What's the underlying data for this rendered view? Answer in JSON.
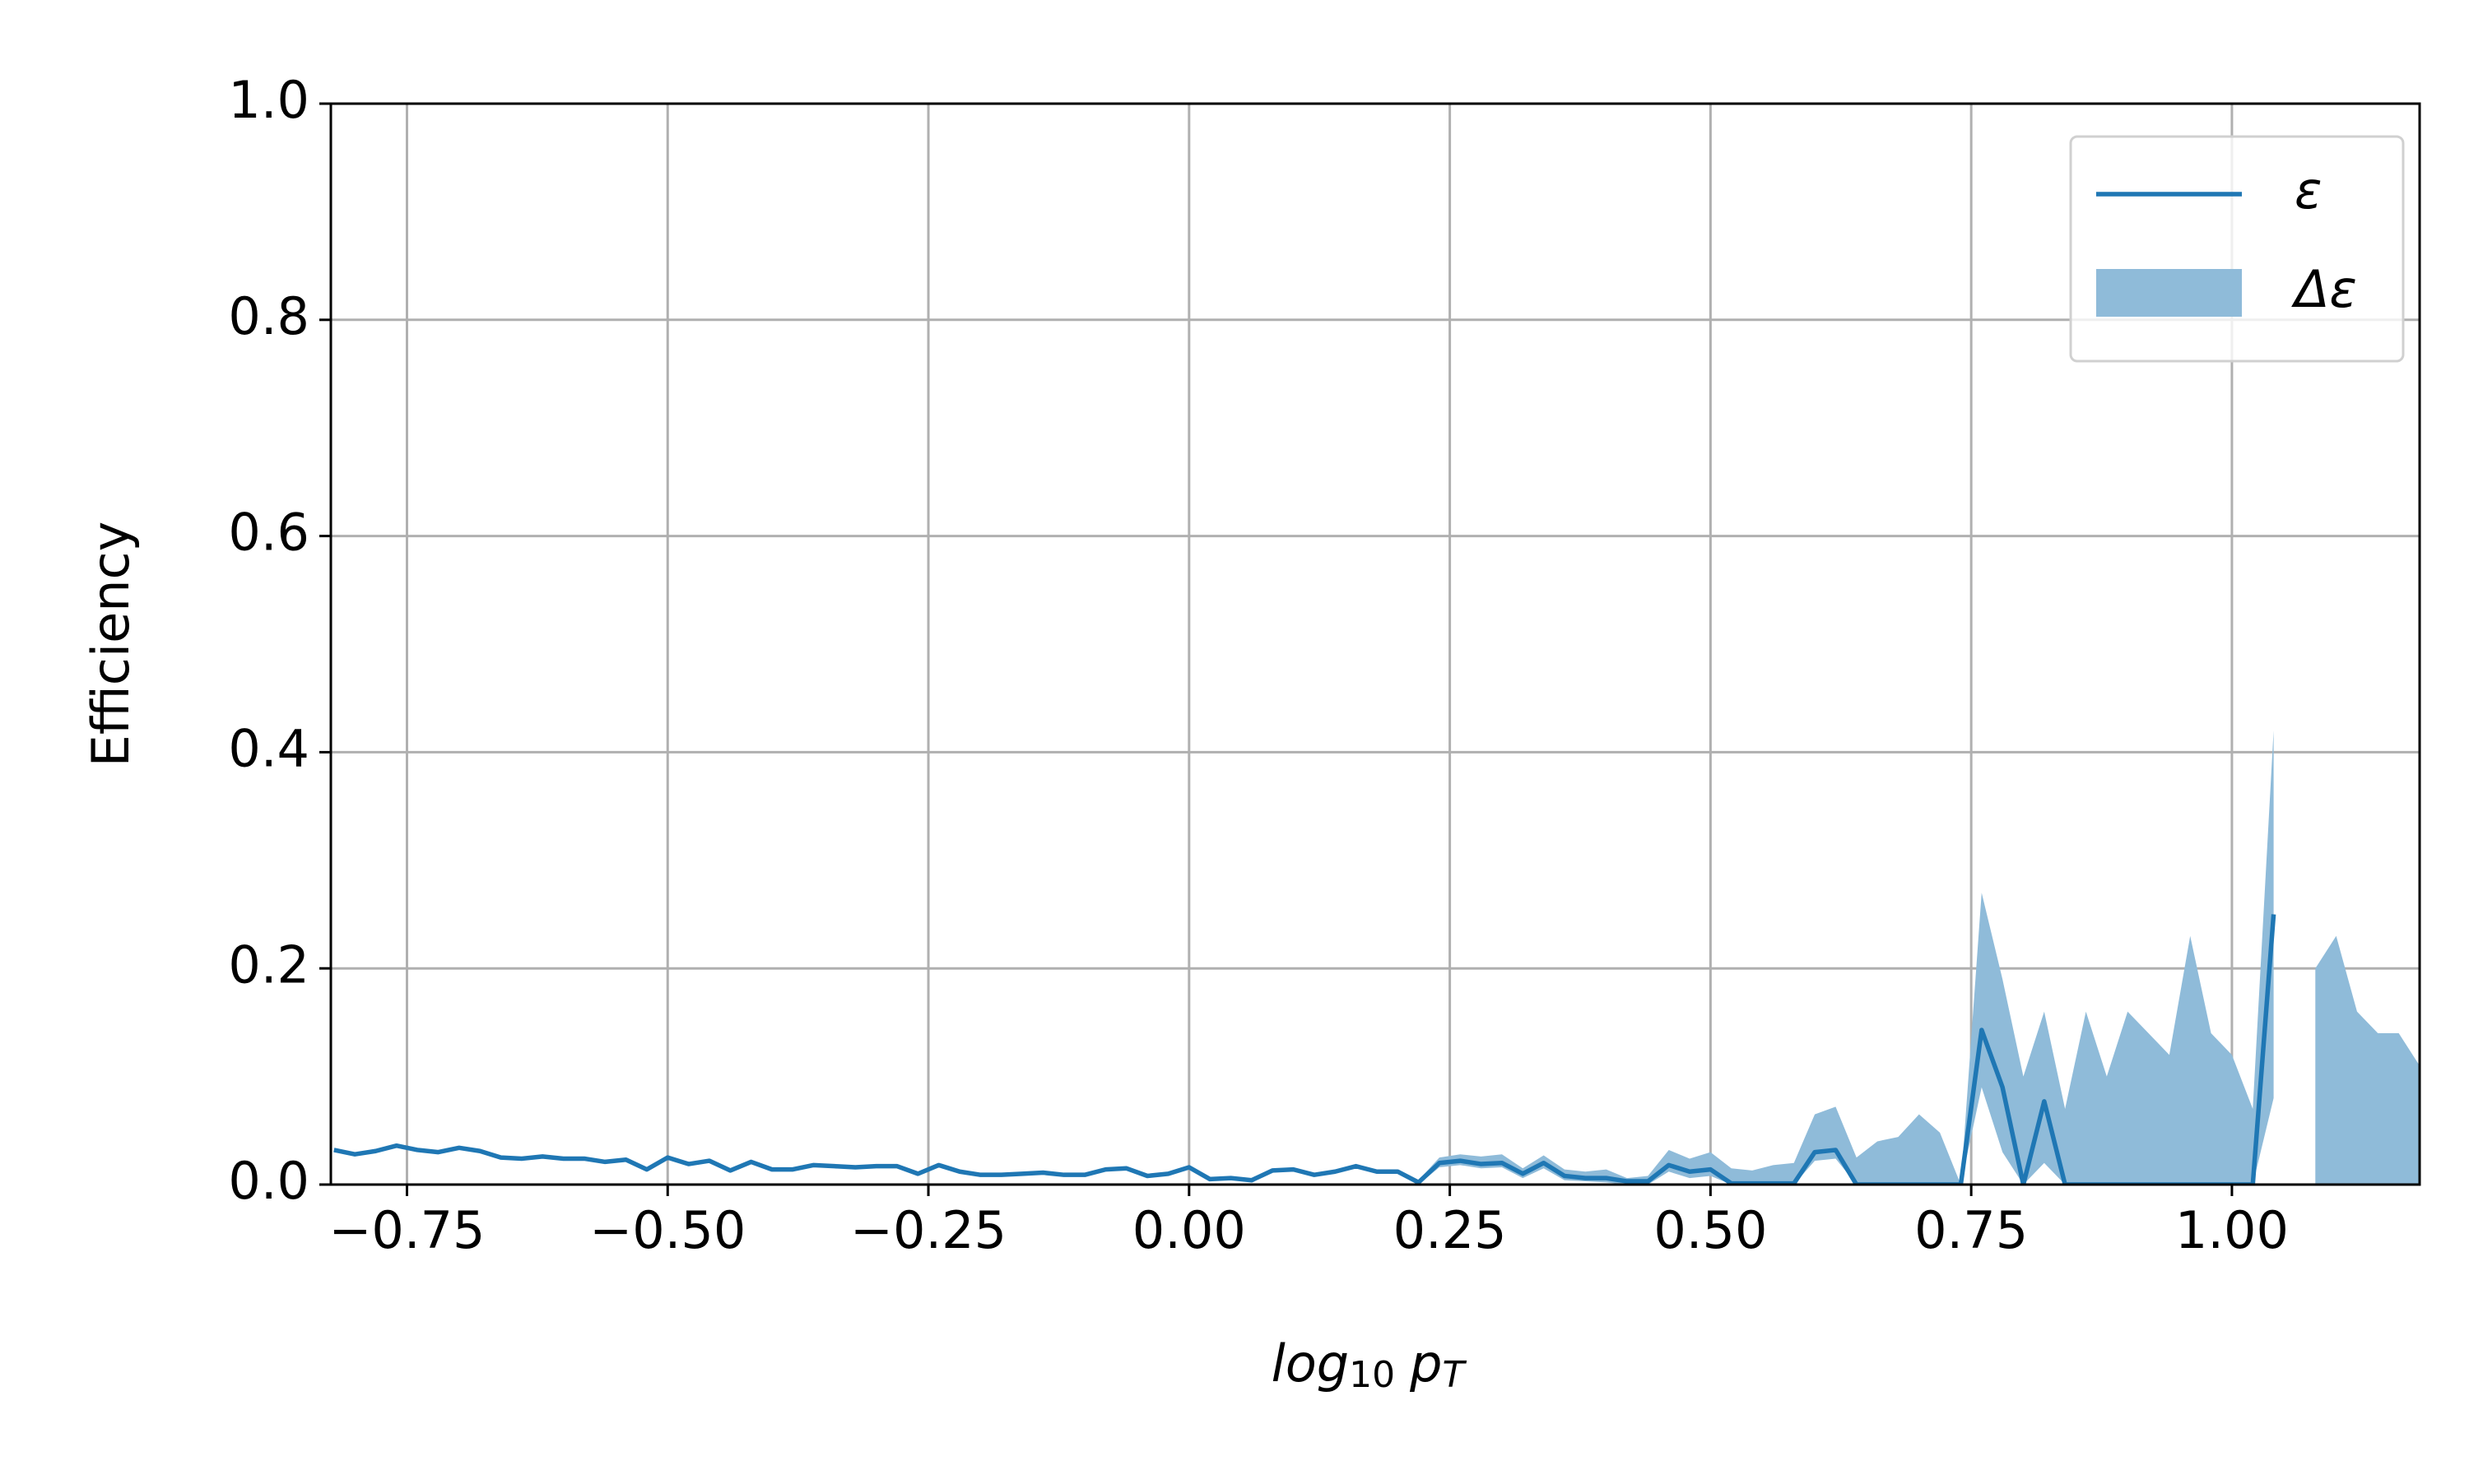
{
  "chart_data": {
    "type": "line",
    "xlabel": [
      "log",
      "10",
      "p",
      "T"
    ],
    "ylabel": "Efficiency",
    "xlim": [
      -0.823,
      1.18
    ],
    "ylim": [
      0,
      1
    ],
    "xticks": [
      {
        "value": -0.75,
        "label": "−0.75"
      },
      {
        "value": -0.5,
        "label": "−0.50"
      },
      {
        "value": -0.25,
        "label": "−0.25"
      },
      {
        "value": 0,
        "label": "0.00"
      },
      {
        "value": 0.25,
        "label": "0.25"
      },
      {
        "value": 0.5,
        "label": "0.50"
      },
      {
        "value": 0.75,
        "label": "0.75"
      },
      {
        "value": 1,
        "label": "1.00"
      }
    ],
    "yticks": [
      {
        "value": 0,
        "label": "0.0"
      },
      {
        "value": 0.2,
        "label": "0.2"
      },
      {
        "value": 0.4,
        "label": "0.4"
      },
      {
        "value": 0.6,
        "label": "0.6"
      },
      {
        "value": 0.8,
        "label": "0.8"
      },
      {
        "value": 1,
        "label": "1.0"
      }
    ],
    "grid": true,
    "legend": "upper right",
    "x": [
      -0.82,
      -0.8,
      -0.78,
      -0.76,
      -0.74,
      -0.72,
      -0.7,
      -0.68,
      -0.66,
      -0.64,
      -0.62,
      -0.6,
      -0.58,
      -0.56,
      -0.54,
      -0.52,
      -0.5,
      -0.48,
      -0.46,
      -0.44,
      -0.42,
      -0.4,
      -0.38,
      -0.36,
      -0.34,
      -0.32,
      -0.3,
      -0.28,
      -0.26,
      -0.24,
      -0.22,
      -0.2,
      -0.18,
      -0.16,
      -0.14,
      -0.12,
      -0.1,
      -0.08,
      -0.06,
      -0.04,
      -0.02,
      0,
      0.02,
      0.04,
      0.06,
      0.08,
      0.1,
      0.12,
      0.14,
      0.16,
      0.18,
      0.2,
      0.22,
      0.24,
      0.26,
      0.28,
      0.3,
      0.32,
      0.34,
      0.36,
      0.38,
      0.4,
      0.42,
      0.44,
      0.46,
      0.48,
      0.5,
      0.52,
      0.54,
      0.56,
      0.58,
      0.6,
      0.62,
      0.64,
      0.66,
      0.68,
      0.7,
      0.72,
      0.74,
      0.76,
      0.78,
      0.8,
      0.82,
      0.84,
      0.86,
      0.88,
      0.9,
      0.92,
      0.94,
      0.96,
      0.98,
      1,
      1.02,
      1.04,
      1.06,
      1.08,
      1.1,
      1.12,
      1.14,
      1.16,
      1.18
    ],
    "series": [
      {
        "name": "ε",
        "color": "#1f77b4",
        "values": [
          0.032,
          0.028,
          0.031,
          0.036,
          0.032,
          0.03,
          0.034,
          0.031,
          0.025,
          0.024,
          0.026,
          0.024,
          0.024,
          0.021,
          0.023,
          0.014,
          0.025,
          0.019,
          0.022,
          0.013,
          0.021,
          0.014,
          0.014,
          0.018,
          0.017,
          0.016,
          0.017,
          0.017,
          0.01,
          0.018,
          0.012,
          0.009,
          0.009,
          0.01,
          0.011,
          0.009,
          0.009,
          0.014,
          0.015,
          0.008,
          0.01,
          0.016,
          0.005,
          0.006,
          0.004,
          0.013,
          0.014,
          0.009,
          0.012,
          0.017,
          0.012,
          0.012,
          0.002,
          0.02,
          0.022,
          0.019,
          0.02,
          0.01,
          0.02,
          0.008,
          0.006,
          0.006,
          0.003,
          0.003,
          0.018,
          0.012,
          0.014,
          0.001,
          0.001,
          0.001,
          0.001,
          0.03,
          0.032,
          0,
          0,
          0,
          0,
          0,
          0,
          0.143,
          0.09,
          0,
          0.077,
          0,
          0,
          0,
          0,
          0,
          0,
          0,
          0,
          0,
          0,
          0.25,
          null,
          null,
          null,
          null,
          null,
          null,
          null
        ]
      },
      {
        "name": "Δε",
        "color": "#8fbbd9",
        "lower": [
          null,
          null,
          null,
          null,
          null,
          null,
          null,
          null,
          null,
          null,
          null,
          null,
          null,
          null,
          null,
          null,
          null,
          null,
          null,
          null,
          null,
          null,
          null,
          null,
          null,
          null,
          null,
          null,
          null,
          null,
          null,
          null,
          null,
          null,
          null,
          null,
          null,
          null,
          null,
          null,
          null,
          null,
          null,
          null,
          null,
          null,
          null,
          null,
          null,
          null,
          null,
          null,
          0,
          0.016,
          0.018,
          0.015,
          0.016,
          0.006,
          0.015,
          0.004,
          0.003,
          0.002,
          0,
          0,
          0.012,
          0.006,
          0.008,
          0,
          0,
          0,
          0,
          0.022,
          0.024,
          0,
          0,
          0,
          0,
          0,
          0,
          0.09,
          0.03,
          0,
          0.02,
          0,
          0,
          0,
          0,
          0,
          0,
          0,
          0,
          0,
          0,
          0.08,
          null,
          0,
          0,
          0,
          0,
          0,
          0
        ],
        "upper": [
          null,
          null,
          null,
          null,
          null,
          null,
          null,
          null,
          null,
          null,
          null,
          null,
          null,
          null,
          null,
          null,
          null,
          null,
          null,
          null,
          null,
          null,
          null,
          null,
          null,
          null,
          null,
          null,
          null,
          null,
          null,
          null,
          null,
          null,
          null,
          null,
          null,
          null,
          null,
          null,
          null,
          null,
          null,
          null,
          null,
          null,
          null,
          null,
          null,
          null,
          null,
          null,
          0.004,
          0.025,
          0.028,
          0.026,
          0.028,
          0.015,
          0.027,
          0.014,
          0.012,
          0.014,
          0.006,
          0.008,
          0.032,
          0.024,
          0.03,
          0.015,
          0.013,
          0.018,
          0.02,
          0.065,
          0.072,
          0.025,
          0.04,
          0.044,
          0.065,
          0.048,
          0,
          0.27,
          0.19,
          0.1,
          0.16,
          0.07,
          0.16,
          0.1,
          0.16,
          0.14,
          0.12,
          0.23,
          0.14,
          0.12,
          0.07,
          0.42,
          null,
          0.2,
          0.23,
          0.16,
          0.14,
          0.14,
          0.11
        ]
      }
    ]
  }
}
